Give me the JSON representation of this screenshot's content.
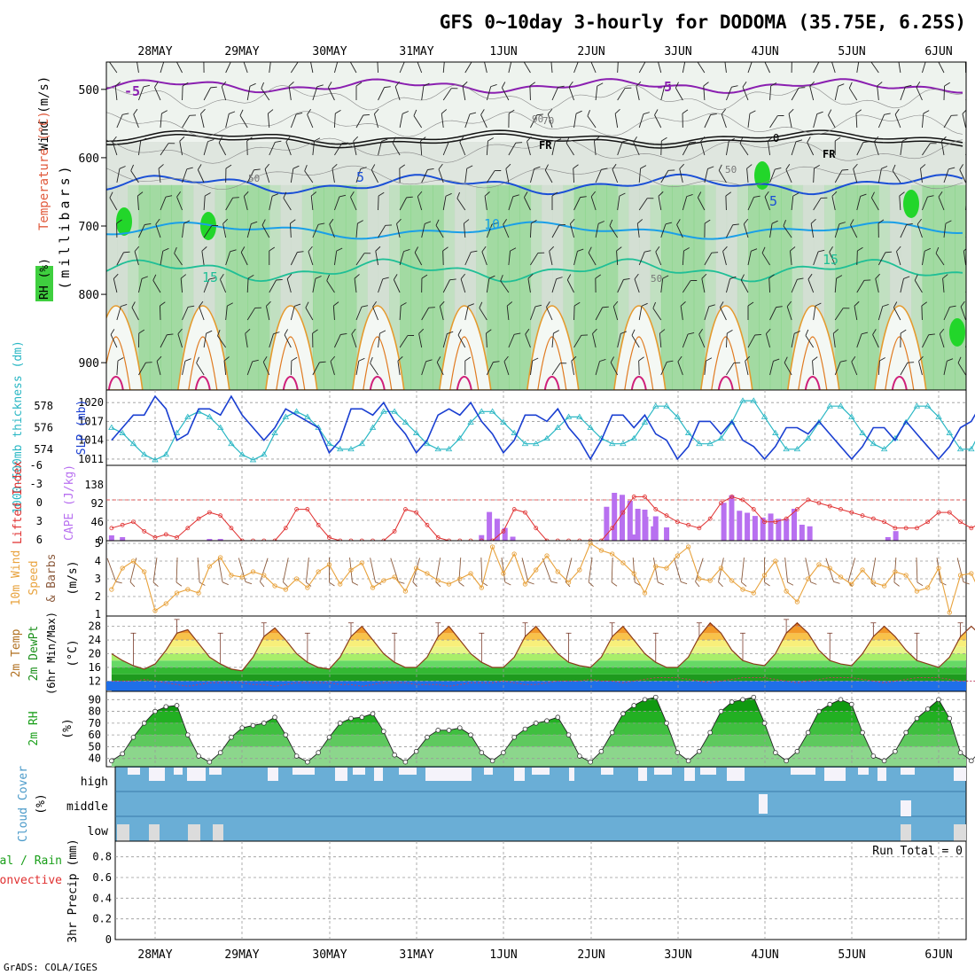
{
  "title": "GFS 0~10day 3-hourly for DODOMA (35.75E, 6.25S)",
  "credit": "GrADS: COLA/IGES",
  "date_labels": [
    "28MAY",
    "29MAY",
    "30MAY",
    "31MAY",
    "1JUN",
    "2JUN",
    "3JUN",
    "4JUN",
    "5JUN",
    "6JUN"
  ],
  "upper_panel": {
    "y_axis_title": "(millibars)",
    "left_labels": [
      "Wind (m/s)",
      "Temperature (°C)",
      "RH (%)"
    ],
    "pressure_ticks": [
      500,
      600,
      700,
      800,
      900
    ],
    "contour_labels": [
      "-5",
      "FR",
      "5",
      "10",
      "15",
      "50",
      "70",
      "90",
      "0"
    ]
  },
  "thickness_panel": {
    "left_label_thickness": "1000-500mb thickness (dm)",
    "left_label_slp": "SLP (mb)",
    "thickness_ticks": [
      578,
      576,
      574
    ],
    "slp_ticks": [
      1020,
      1017,
      1014,
      1011
    ],
    "colors": {
      "thickness": "#2ab7c4",
      "slp": "#1a3fd1"
    }
  },
  "cape_panel": {
    "left_label_li": "Lifted Index",
    "left_label_cape": "CAPE (J/kg)",
    "li_ticks": [
      "-6",
      "-3",
      "0",
      "3",
      "6"
    ],
    "cape_ticks": [
      "138",
      "92",
      "46",
      "0"
    ],
    "colors": {
      "li": "#e03030",
      "cape": "#b870f0"
    }
  },
  "wind_panel": {
    "left_label_1": "10m Wind",
    "left_label_2": "Speed",
    "left_label_3": "& Barbs",
    "unit": "(m/s)",
    "ticks": [
      "5",
      "4",
      "3",
      "2",
      "1"
    ],
    "colors": {
      "speed": "#e8a23c",
      "barb": "#8b5a3c"
    }
  },
  "temp_panel": {
    "left_label_1": "2m Temp",
    "left_label_2": "2m DewPt",
    "left_label_3": "(6hr Min/Max)",
    "unit": "(°C)",
    "ticks": [
      "28",
      "24",
      "20",
      "16",
      "12"
    ]
  },
  "rh_panel": {
    "left_label": "2m RH",
    "unit": "(%)",
    "ticks": [
      "90",
      "80",
      "70",
      "60",
      "50",
      "40"
    ]
  },
  "cloud_panel": {
    "left_label": "Cloud Cover",
    "unit": "(%)",
    "levels": [
      "high",
      "middle",
      "low"
    ],
    "color": "#6aaed6"
  },
  "precip_panel": {
    "left_label_1": "Total / Rain",
    "left_label_2": "Convective",
    "y_label": "3hr Precip (mm)",
    "ticks": [
      "0.8",
      "0.6",
      "0.4",
      "0.2",
      "0"
    ],
    "run_total": "Run Total = 0"
  },
  "chart_data": [
    {
      "type": "line",
      "title": "1000-500mb thickness (dm) / SLP (mb)",
      "x_start": "2024-05-27T12:00",
      "x_step_hours": 3,
      "series": [
        {
          "name": "SLP (mb)",
          "axis": "right",
          "ylim": [
            1010,
            1022
          ],
          "values": [
            1014,
            1016,
            1018,
            1018,
            1021,
            1019,
            1014,
            1015,
            1019,
            1019,
            1018,
            1021,
            1018,
            1016,
            1014,
            1016,
            1019,
            1018,
            1017,
            1016,
            1012,
            1014,
            1019,
            1019,
            1018,
            1020,
            1017,
            1015,
            1012,
            1014,
            1018,
            1019,
            1018,
            1020,
            1017,
            1015,
            1012,
            1014,
            1018,
            1018,
            1017,
            1019,
            1016,
            1014,
            1011,
            1014,
            1018,
            1018,
            1016,
            1018,
            1015,
            1014,
            1011,
            1013,
            1017,
            1017,
            1015,
            1017,
            1014,
            1013,
            1011,
            1013,
            1016,
            1016,
            1015,
            1017,
            1015,
            1013,
            1011,
            1013,
            1016,
            1016,
            1014,
            1017,
            1015,
            1013,
            1011,
            1013,
            1016,
            1017,
            1020
          ]
        },
        {
          "name": "thickness (dm)",
          "axis": "left",
          "ylim": [
            572.5,
            579.5
          ],
          "values": [
            576,
            575.5,
            574.5,
            573.5,
            573,
            573.5,
            575.5,
            577,
            577.5,
            577,
            576,
            574.5,
            573.5,
            573,
            573.5,
            575.5,
            577,
            577.5,
            577,
            576,
            574.5,
            574,
            574,
            574.5,
            576,
            577.5,
            577.5,
            576.5,
            575.5,
            574.5,
            574,
            574,
            575,
            576.5,
            577.5,
            577.5,
            576.5,
            575.5,
            574.5,
            574.5,
            575,
            576,
            577,
            577,
            576,
            575,
            574.5,
            574.5,
            575,
            576.5,
            578,
            578,
            577,
            575.5,
            574.5,
            574.5,
            575,
            576.5,
            578.5,
            578.5,
            577,
            575.5,
            574,
            574,
            575,
            576.5,
            578,
            578,
            577,
            575.5,
            574.5,
            574,
            575,
            576.5,
            578,
            578,
            577,
            575.5,
            574,
            574,
            576
          ]
        }
      ]
    },
    {
      "type": "bar",
      "title": "Lifted Index / CAPE (J/kg)",
      "x_start": "2024-05-27T12:00",
      "x_step_hours": 3,
      "series": [
        {
          "name": "CAPE (J/kg)",
          "axis": "right",
          "ylim": [
            0,
            170
          ],
          "values": [
            12,
            8,
            0,
            0,
            0,
            0,
            0,
            0,
            0,
            4,
            4,
            0,
            0,
            0,
            0,
            0,
            0,
            0,
            0,
            0,
            0,
            0,
            0,
            0,
            0,
            0,
            0,
            0,
            0,
            0,
            0,
            0,
            0,
            0,
            0,
            0,
            0,
            0,
            0,
            0,
            0,
            0,
            0,
            0,
            0,
            0,
            0,
            0,
            14,
            70,
            55,
            30,
            0,
            0,
            0,
            0,
            0,
            0,
            0,
            0,
            0,
            0,
            0,
            0,
            0,
            0,
            0,
            0,
            0,
            0,
            0,
            0,
            0,
            0,
            0,
            0,
            0,
            0,
            0,
            0,
            0
          ]
        },
        {
          "name": "Lifted Index",
          "axis": "left",
          "ylim": [
            6,
            -6
          ],
          "type": "line",
          "values": [
            4,
            3.5,
            3,
            4.5,
            5.5,
            5,
            5.5,
            4,
            2.5,
            1.5,
            2,
            4,
            6,
            6,
            6,
            6,
            4,
            1,
            1,
            3.5,
            5.5,
            6,
            6,
            6,
            6,
            6,
            4.5,
            1,
            1.5,
            3.5,
            5.5,
            6,
            6,
            6,
            6,
            6,
            4.5,
            1,
            1.5,
            4,
            6,
            6,
            6,
            6,
            6,
            6,
            4,
            1.5,
            -1,
            -1,
            1,
            2,
            3,
            3.5,
            4,
            2.5,
            0,
            -1,
            -0.5,
            1,
            3,
            3,
            2.5,
            1,
            -0.5,
            0,
            0.5,
            1,
            1.5,
            2,
            2.5,
            3,
            4,
            4,
            4,
            3,
            1.5,
            1.5,
            3,
            4,
            3
          ]
        }
      ]
    },
    {
      "type": "line",
      "title": "10m Wind Speed & Barbs (m/s)",
      "ylim": [
        1,
        5
      ],
      "x_start": "2024-05-27T12:00",
      "x_step_hours": 3,
      "series": [
        {
          "name": "Speed",
          "values": [
            2.4,
            3.6,
            4.0,
            3.4,
            1.2,
            1.6,
            2.2,
            2.4,
            2.2,
            3.7,
            4.2,
            3.2,
            3.1,
            3.4,
            3.2,
            2.6,
            2.4,
            3.0,
            2.5,
            3.4,
            3.8,
            2.7,
            3.5,
            3.9,
            2.5,
            2.9,
            3.1,
            2.3,
            3.6,
            3.3,
            2.9,
            2.7,
            3.0,
            3.3,
            2.5,
            4.8,
            3.3,
            4.4,
            2.7,
            3.5,
            4.3,
            3.4,
            2.8,
            3.5,
            5.0,
            4.6,
            4.4,
            3.9,
            3.3,
            2.2,
            3.7,
            3.6,
            4.3,
            4.8,
            3.0,
            2.9,
            3.6,
            2.9,
            2.4,
            2.2,
            3.2,
            4.0,
            2.3,
            1.7,
            3.0,
            3.8,
            3.6,
            3.1,
            2.7,
            3.5,
            2.8,
            2.6,
            3.4,
            3.2,
            2.3,
            2.5,
            3.6,
            1.1,
            3.2,
            3.3,
            2.0
          ]
        }
      ]
    },
    {
      "type": "area",
      "title": "2m Temp / 2m DewPt (6hr Min/Max) (°C)",
      "ylim": [
        9,
        31
      ],
      "x_start": "2024-05-27T12:00",
      "x_step_hours": 3,
      "series": [
        {
          "name": "2m Temp",
          "values": [
            20,
            18,
            16.5,
            15.5,
            17,
            21,
            26,
            27,
            23,
            19,
            17,
            15.5,
            15,
            19,
            25,
            27.5,
            24,
            20,
            17.5,
            16,
            15.5,
            19,
            25,
            28,
            24,
            20,
            17.5,
            16,
            16,
            19,
            25,
            28,
            24,
            20,
            17.5,
            16,
            16,
            19,
            25,
            28,
            24,
            20,
            17.5,
            16.5,
            16,
            19,
            25,
            28,
            24,
            20,
            17.5,
            16,
            16,
            19,
            25,
            29,
            26,
            21,
            18,
            17,
            16.5,
            20,
            26,
            29,
            26,
            21,
            18,
            17,
            16.5,
            20,
            25,
            28,
            25,
            21,
            18,
            17,
            16,
            19,
            25,
            28,
            25,
            21,
            18,
            17,
            16,
            18.5
          ]
        },
        {
          "name": "2m DewPt",
          "values": [
            12,
            12,
            12,
            12.5,
            12,
            11.5,
            11,
            10.5,
            11,
            11.5,
            11.5,
            11.5,
            11.5,
            11,
            11,
            10.5,
            11,
            11.5,
            11.5,
            11.5,
            11.5,
            11,
            11,
            10.5,
            11,
            11.5,
            11.5,
            11.5,
            11,
            11,
            11,
            10.5,
            11,
            11.5,
            11.5,
            11.5,
            12,
            11.5,
            11,
            11,
            11.5,
            12,
            12,
            12,
            12.5,
            12,
            12,
            11.5,
            12,
            12.5,
            13,
            13,
            13,
            12.5,
            12,
            11.5,
            12,
            12.5,
            13,
            13,
            13,
            12.5,
            12,
            11.5,
            12,
            12.5,
            13,
            13,
            13,
            12.5,
            12,
            11.5,
            12,
            12.5,
            13,
            13,
            13,
            12.5,
            12,
            12,
            12
          ]
        }
      ]
    },
    {
      "type": "area",
      "title": "2m RH (%)",
      "ylim": [
        35,
        95
      ],
      "x_start": "2024-05-27T12:00",
      "x_step_hours": 3,
      "series": [
        {
          "name": "2m RH",
          "values": [
            38,
            44,
            58,
            70,
            80,
            84,
            85,
            60,
            42,
            37,
            45,
            58,
            66,
            68,
            70,
            75,
            60,
            42,
            37,
            45,
            58,
            70,
            74,
            75,
            78,
            63,
            43,
            37,
            46,
            58,
            64,
            64,
            66,
            60,
            45,
            38,
            45,
            58,
            65,
            70,
            72,
            75,
            60,
            42,
            37,
            46,
            62,
            78,
            85,
            90,
            92,
            70,
            45,
            38,
            46,
            62,
            80,
            88,
            90,
            92,
            70,
            45,
            38,
            46,
            62,
            80,
            86,
            90,
            86,
            62,
            42,
            38,
            46,
            62,
            74,
            82,
            90,
            74,
            45,
            38,
            48
          ]
        }
      ]
    }
  ]
}
